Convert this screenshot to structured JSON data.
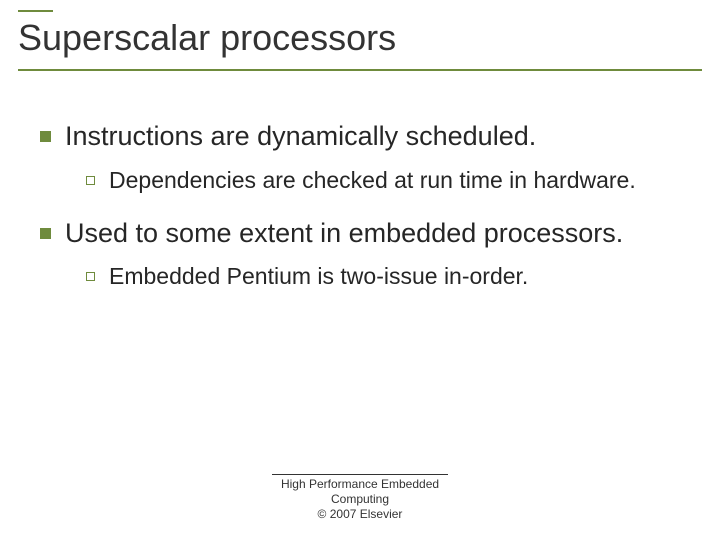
{
  "colors": {
    "accent": "#6f8b3d",
    "text": "#262626",
    "title": "#333333",
    "background": "#ffffff"
  },
  "title": "Superscalar processors",
  "bullets": [
    {
      "text": "Instructions are dynamically scheduled.",
      "children": [
        {
          "text": "Dependencies are checked at run time in hardware."
        }
      ]
    },
    {
      "text": "Used to some extent in embedded processors.",
      "children": [
        {
          "text": "Embedded Pentium is two-issue in-order."
        }
      ]
    }
  ],
  "footer": {
    "line1": "High Performance Embedded",
    "line2": "Computing",
    "line3": "© 2007 Elsevier"
  }
}
